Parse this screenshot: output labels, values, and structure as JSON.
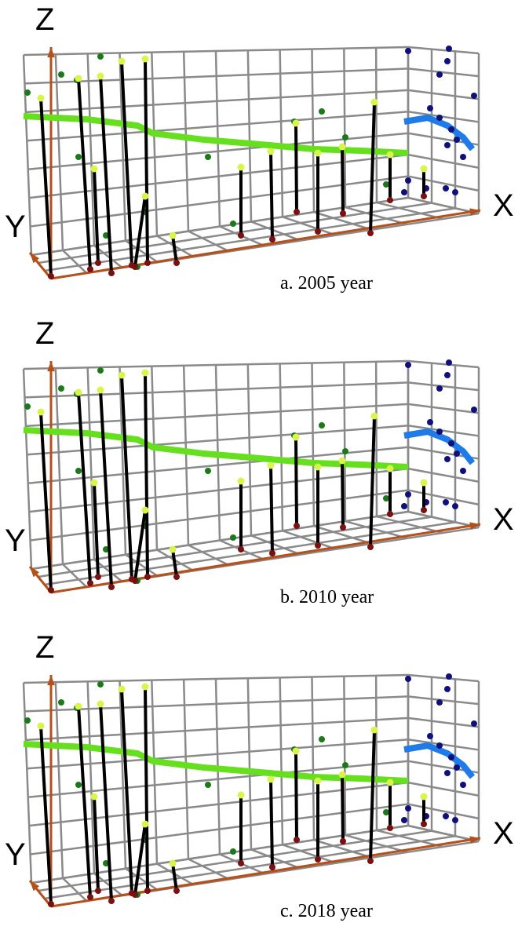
{
  "panels": [
    {
      "z_label": "Z",
      "y_label": "Y",
      "x_label": "X",
      "caption": "a. 2005 year"
    },
    {
      "z_label": "Z",
      "y_label": "Y",
      "x_label": "X",
      "caption": "b. 2010 year"
    },
    {
      "z_label": "Z",
      "y_label": "Y",
      "x_label": "X",
      "caption": "c. 2018 year"
    }
  ]
}
